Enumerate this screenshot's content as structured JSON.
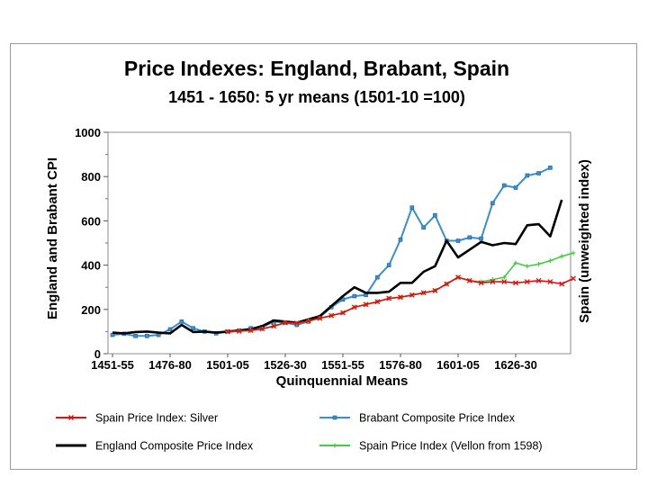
{
  "chart_data": {
    "type": "line",
    "title": "Price Indexes: England, Brabant, Spain",
    "subtitle": "1451 - 1650: 5 yr means (1501-10 =100)",
    "xlabel": "Quinquennial Means",
    "ylabel": "England and Brabant CPI",
    "y2label": "Spain (unweighted index)",
    "ylim": [
      0,
      1000
    ],
    "yticks": [
      "0",
      "200",
      "400",
      "600",
      "800",
      "1000"
    ],
    "x_tick_labels": [
      "1451-55",
      "1476-80",
      "1501-05",
      "1526-30",
      "1551-55",
      "1576-80",
      "1601-05",
      "1626-30"
    ],
    "x_tick_index": [
      0,
      5,
      10,
      15,
      20,
      25,
      30,
      35
    ],
    "periods": 40,
    "series": [
      {
        "name": "Spain Price Index: Silver",
        "color": "#dd1111",
        "marker": "x",
        "start_index": 10,
        "values": [
          100,
          102,
          105,
          112,
          125,
          140,
          138,
          148,
          160,
          172,
          185,
          210,
          222,
          235,
          250,
          255,
          265,
          275,
          285,
          315,
          345,
          330,
          320,
          325,
          325,
          320,
          325,
          330,
          325,
          315,
          340
        ]
      },
      {
        "name": "Brabant Composite Price Index",
        "color": "#3a8fd0",
        "marker": "square",
        "start_index": 0,
        "values": [
          85,
          90,
          80,
          80,
          85,
          110,
          145,
          115,
          100,
          92,
          100,
          105,
          115,
          120,
          145,
          140,
          130,
          145,
          165,
          210,
          245,
          260,
          265,
          345,
          400,
          515,
          660,
          570,
          625,
          510,
          510,
          525,
          520,
          680,
          760,
          750,
          805,
          815,
          840
        ]
      },
      {
        "name": "England Composite Price Index",
        "color": "#000000",
        "marker": "none",
        "start_index": 0,
        "values": [
          95,
          92,
          98,
          100,
          95,
          92,
          130,
          98,
          100,
          95,
          100,
          105,
          110,
          125,
          150,
          145,
          140,
          155,
          170,
          215,
          260,
          300,
          275,
          275,
          280,
          320,
          320,
          370,
          395,
          510,
          435,
          470,
          505,
          490,
          500,
          495,
          580,
          585,
          530,
          695
        ]
      },
      {
        "name": "Spain Price Index (Vellon from 1598)",
        "color": "#44cc44",
        "marker": "plus",
        "start_index": 10,
        "values": [
          100,
          102,
          105,
          112,
          125,
          140,
          138,
          148,
          160,
          172,
          185,
          210,
          222,
          235,
          250,
          255,
          265,
          275,
          285,
          315,
          345,
          330,
          325,
          335,
          345,
          410,
          395,
          405,
          420,
          440,
          455
        ]
      }
    ]
  },
  "legend": [
    {
      "label": "Spain Price Index: Silver",
      "color": "#dd1111",
      "marker": "x"
    },
    {
      "label": "Brabant Composite Price Index",
      "color": "#3a8fd0",
      "marker": "square"
    },
    {
      "label": "England Composite Price Index",
      "color": "#000000",
      "marker": "none"
    },
    {
      "label": "Spain Price Index (Vellon from 1598)",
      "color": "#44cc44",
      "marker": "plus"
    }
  ]
}
